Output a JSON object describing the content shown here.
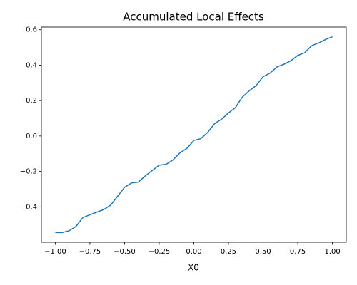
{
  "chart_data": {
    "type": "line",
    "title": "Accumulated Local Effects",
    "xlabel": "X0",
    "x": [
      -1.0,
      -0.95,
      -0.9,
      -0.85,
      -0.8,
      -0.75,
      -0.7,
      -0.65,
      -0.6,
      -0.55,
      -0.5,
      -0.45,
      -0.4,
      -0.35,
      -0.3,
      -0.25,
      -0.2,
      -0.15,
      -0.1,
      -0.05,
      0.0,
      0.05,
      0.1,
      0.15,
      0.2,
      0.25,
      0.3,
      0.35,
      0.4,
      0.45,
      0.5,
      0.55,
      0.6,
      0.65,
      0.7,
      0.75,
      0.8,
      0.85,
      0.9,
      0.95,
      1.0
    ],
    "series": [
      {
        "color": "#1f77b4",
        "values": [
          -0.545,
          -0.545,
          -0.535,
          -0.51,
          -0.46,
          -0.445,
          -0.43,
          -0.415,
          -0.39,
          -0.34,
          -0.29,
          -0.265,
          -0.26,
          -0.225,
          -0.195,
          -0.165,
          -0.16,
          -0.135,
          -0.095,
          -0.07,
          -0.025,
          -0.015,
          0.02,
          0.07,
          0.095,
          0.13,
          0.16,
          0.22,
          0.255,
          0.285,
          0.335,
          0.355,
          0.39,
          0.405,
          0.425,
          0.455,
          0.47,
          0.51,
          0.525,
          0.545,
          0.56
        ]
      }
    ],
    "xlim": [
      -1.1,
      1.1
    ],
    "xticks": [
      {
        "value": -1,
        "label": "−1.00"
      },
      {
        "value": -0.75,
        "label": "−0.75"
      },
      {
        "value": -0.5,
        "label": "−0.50"
      },
      {
        "value": -0.25,
        "label": "−0.25"
      },
      {
        "value": 0,
        "label": "0.00"
      },
      {
        "value": 0.25,
        "label": "0.25"
      },
      {
        "value": 0.5,
        "label": "0.50"
      },
      {
        "value": 0.75,
        "label": "0.75"
      },
      {
        "value": 1,
        "label": "1.00"
      }
    ],
    "ylim": [
      -0.6,
      0.615
    ],
    "yticks": [
      {
        "value": -0.4,
        "label": "−0.4"
      },
      {
        "value": -0.2,
        "label": "−0.2"
      },
      {
        "value": 0,
        "label": "0.0"
      },
      {
        "value": 0.2,
        "label": "0.2"
      },
      {
        "value": 0.4,
        "label": "0.4"
      },
      {
        "value": 0.6,
        "label": "0.6"
      }
    ],
    "grid": false
  }
}
